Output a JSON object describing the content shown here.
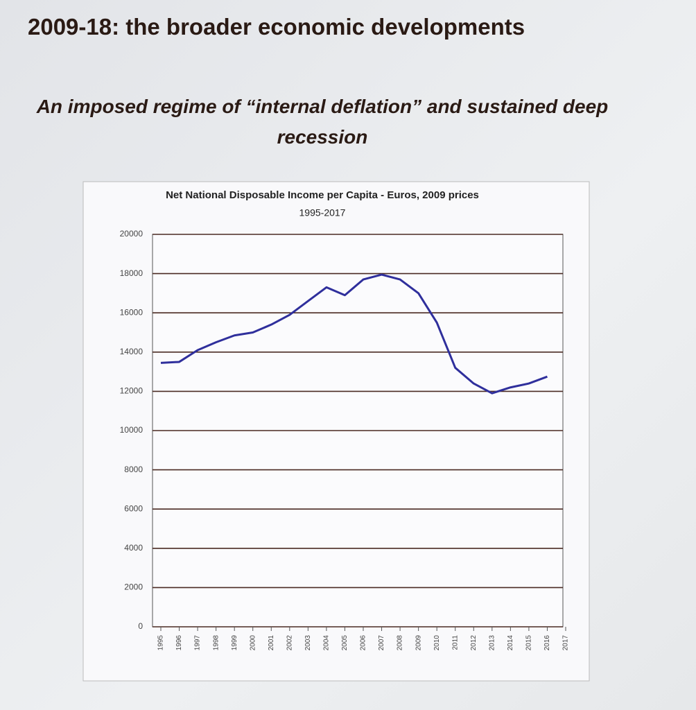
{
  "slide": {
    "title": "2009-18: the broader economic developments",
    "subtitle": "An imposed regime of “internal deflation” and sustained deep recession"
  },
  "chart_data": {
    "type": "line",
    "title": "Net National Disposable Income per Capita - Euros, 2009 prices",
    "subtitle": "1995-2017",
    "categories": [
      "1995",
      "1996",
      "1997",
      "1998",
      "1999",
      "2000",
      "2001",
      "2002",
      "2003",
      "2004",
      "2005",
      "2006",
      "2007",
      "2008",
      "2009",
      "2010",
      "2011",
      "2012",
      "2013",
      "2014",
      "2015",
      "2016",
      "2017"
    ],
    "series": [
      {
        "name": "Net National Disposable Income per Capita",
        "color": "#2f2f9c",
        "values": [
          13450,
          13500,
          14100,
          14500,
          14850,
          15000,
          15400,
          15900,
          16600,
          17300,
          16900,
          17700,
          17950,
          17700,
          17000,
          15500,
          13200,
          12400,
          11900,
          12200,
          12400,
          12750,
          null
        ]
      }
    ],
    "ylim": [
      0,
      20000
    ],
    "yticks": [
      0,
      2000,
      4000,
      6000,
      8000,
      10000,
      12000,
      14000,
      16000,
      18000,
      20000
    ],
    "grid": true
  }
}
